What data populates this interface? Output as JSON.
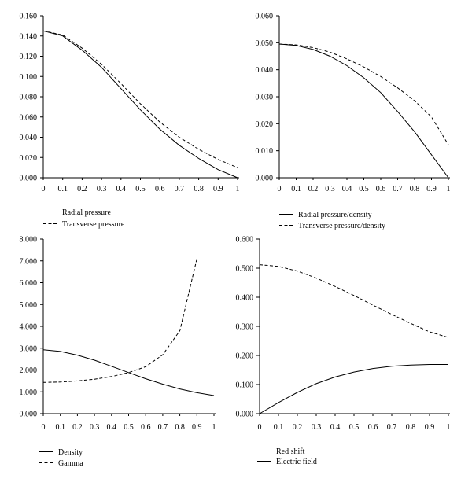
{
  "chart_data": [
    {
      "type": "line",
      "x": [
        0,
        0.1,
        0.2,
        0.3,
        0.4,
        0.5,
        0.6,
        0.7,
        0.8,
        0.9,
        1
      ],
      "xlim": [
        0,
        1
      ],
      "ylim": [
        0,
        0.16
      ],
      "x_ticks": [
        "0",
        "0.1",
        "0.2",
        "0.3",
        "0.4",
        "0.5",
        "0.6",
        "0.7",
        "0.8",
        "0.9",
        "1"
      ],
      "y_ticks": [
        "0.000",
        "0.020",
        "0.040",
        "0.060",
        "0.080",
        "0.100",
        "0.120",
        "0.140",
        "0.160"
      ],
      "grid": false,
      "legend_position": "bottom-left",
      "series": [
        {
          "name": "Radial pressure",
          "style": "solid",
          "values": [
            0.145,
            0.14,
            0.126,
            0.109,
            0.088,
            0.067,
            0.048,
            0.032,
            0.019,
            0.008,
            0.0
          ]
        },
        {
          "name": "Transverse pressure",
          "style": "dashed",
          "values": [
            0.145,
            0.141,
            0.128,
            0.112,
            0.093,
            0.073,
            0.055,
            0.04,
            0.028,
            0.018,
            0.01
          ]
        }
      ]
    },
    {
      "type": "line",
      "x": [
        0,
        0.1,
        0.2,
        0.3,
        0.4,
        0.5,
        0.6,
        0.7,
        0.8,
        0.9,
        1
      ],
      "xlim": [
        0,
        1
      ],
      "ylim": [
        0,
        0.06
      ],
      "x_ticks": [
        "0",
        "0.1",
        "0.2",
        "0.3",
        "0.4",
        "0.5",
        "0.6",
        "0.7",
        "0.8",
        "0.9",
        "1"
      ],
      "y_ticks": [
        "0.000",
        "0.010",
        "0.020",
        "0.030",
        "0.040",
        "0.050",
        "0.060"
      ],
      "grid": false,
      "legend_position": "bottom-left",
      "series": [
        {
          "name": "Radial pressure/density",
          "style": "solid",
          "values": [
            0.0495,
            0.049,
            0.0475,
            0.045,
            0.0415,
            0.037,
            0.0315,
            0.0245,
            0.017,
            0.0085,
            0.0
          ]
        },
        {
          "name": "Transverse pressure/density",
          "style": "dashed",
          "values": [
            0.0495,
            0.0492,
            0.0482,
            0.0465,
            0.044,
            0.041,
            0.0375,
            0.0333,
            0.0285,
            0.0225,
            0.0122
          ]
        }
      ]
    },
    {
      "type": "line",
      "x": [
        0,
        0.1,
        0.2,
        0.3,
        0.4,
        0.5,
        0.6,
        0.7,
        0.8,
        0.9,
        1
      ],
      "xlim": [
        0,
        1
      ],
      "ylim": [
        0,
        8
      ],
      "x_ticks": [
        "0",
        "0.1",
        "0.2",
        "0.3",
        "0.4",
        "0.5",
        "0.6",
        "0.7",
        "0.8",
        "0.9",
        "1"
      ],
      "y_ticks": [
        "0.000",
        "1.000",
        "2.000",
        "3.000",
        "4.000",
        "5.000",
        "6.000",
        "7.000",
        "8.000"
      ],
      "grid": false,
      "legend_position": "bottom-left",
      "series": [
        {
          "name": "Density",
          "style": "solid",
          "x": [
            0,
            0.1,
            0.2,
            0.3,
            0.4,
            0.5,
            0.6,
            0.7,
            0.8,
            0.9,
            1
          ],
          "values": [
            2.93,
            2.85,
            2.68,
            2.45,
            2.17,
            1.88,
            1.6,
            1.35,
            1.13,
            0.96,
            0.83
          ]
        },
        {
          "name": "Gamma",
          "style": "dashed",
          "x": [
            0,
            0.1,
            0.2,
            0.3,
            0.4,
            0.5,
            0.6,
            0.7,
            0.8,
            0.9
          ],
          "values": [
            1.43,
            1.45,
            1.5,
            1.58,
            1.7,
            1.88,
            2.15,
            2.7,
            3.8,
            7.1
          ]
        }
      ]
    },
    {
      "type": "line",
      "x": [
        0,
        0.1,
        0.2,
        0.3,
        0.4,
        0.5,
        0.6,
        0.7,
        0.8,
        0.9,
        1
      ],
      "xlim": [
        0,
        1
      ],
      "ylim": [
        0,
        0.6
      ],
      "x_ticks": [
        "0",
        "0.1",
        "0.2",
        "0.3",
        "0.4",
        "0.5",
        "0.6",
        "0.7",
        "0.8",
        "0.9",
        "1"
      ],
      "y_ticks": [
        "0.000",
        "0.100",
        "0.200",
        "0.300",
        "0.400",
        "0.500",
        "0.600"
      ],
      "grid": false,
      "legend_position": "bottom-left",
      "series": [
        {
          "name": "Red shift",
          "style": "dashed",
          "values": [
            0.512,
            0.506,
            0.49,
            0.466,
            0.437,
            0.406,
            0.373,
            0.341,
            0.31,
            0.281,
            0.262
          ]
        },
        {
          "name": "Electric field",
          "style": "solid",
          "values": [
            0.0,
            0.038,
            0.073,
            0.103,
            0.126,
            0.143,
            0.155,
            0.163,
            0.167,
            0.169,
            0.169
          ]
        }
      ]
    }
  ]
}
